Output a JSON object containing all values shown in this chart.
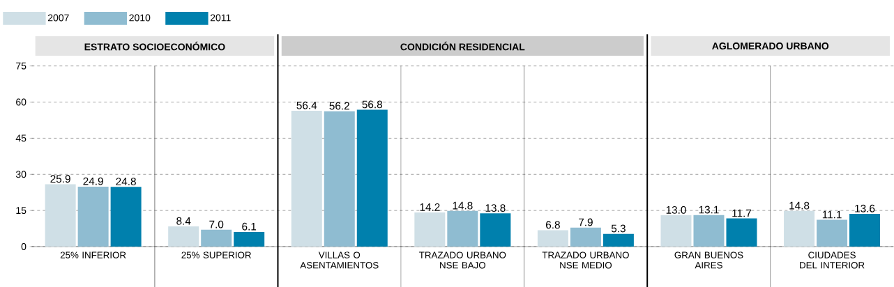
{
  "chart_data": {
    "type": "bar",
    "categories": [
      "25% INFERIOR",
      "25% SUPERIOR",
      "VILLAS O ASENTAMIENTOS",
      "TRAZADO URBANO NSE BAJO",
      "TRAZADO URBANO NSE MEDIO",
      "GRAN BUENOS AIRES",
      "CIUDADES DEL INTERIOR"
    ],
    "series": [
      {
        "name": "2007",
        "color": "#cfdfe6",
        "values": [
          25.9,
          8.4,
          56.4,
          14.2,
          6.8,
          13.0,
          14.8
        ],
        "value_labels": [
          "25.9",
          "8.4",
          "56.4",
          "14.2",
          "6.8",
          "13.0",
          "14.8"
        ]
      },
      {
        "name": "2010",
        "color": "#8fbcd1",
        "values": [
          24.9,
          7.0,
          56.2,
          14.8,
          7.9,
          13.1,
          11.1
        ],
        "value_labels": [
          "24.9",
          "7.0",
          "56.2",
          "14.8",
          "7.9",
          "13.1",
          "11.1"
        ]
      },
      {
        "name": "2011",
        "color": "#0080ad",
        "values": [
          24.8,
          6.1,
          56.8,
          13.8,
          5.3,
          11.7,
          13.6
        ],
        "value_labels": [
          "24.8",
          "6.1",
          "56.8",
          "13.8",
          "5.3",
          "11.7",
          "13.6"
        ]
      }
    ],
    "annotations": [
      "ESTRATO SOCIOECONÓMICO",
      "CONDICIÓN RESIDENCIAL",
      "AGLOMERADO URBANO"
    ],
    "ylim": [
      0,
      75
    ],
    "yticks": [
      0,
      15,
      30,
      45,
      60,
      75
    ],
    "grid": "y",
    "legend": "top left"
  }
}
